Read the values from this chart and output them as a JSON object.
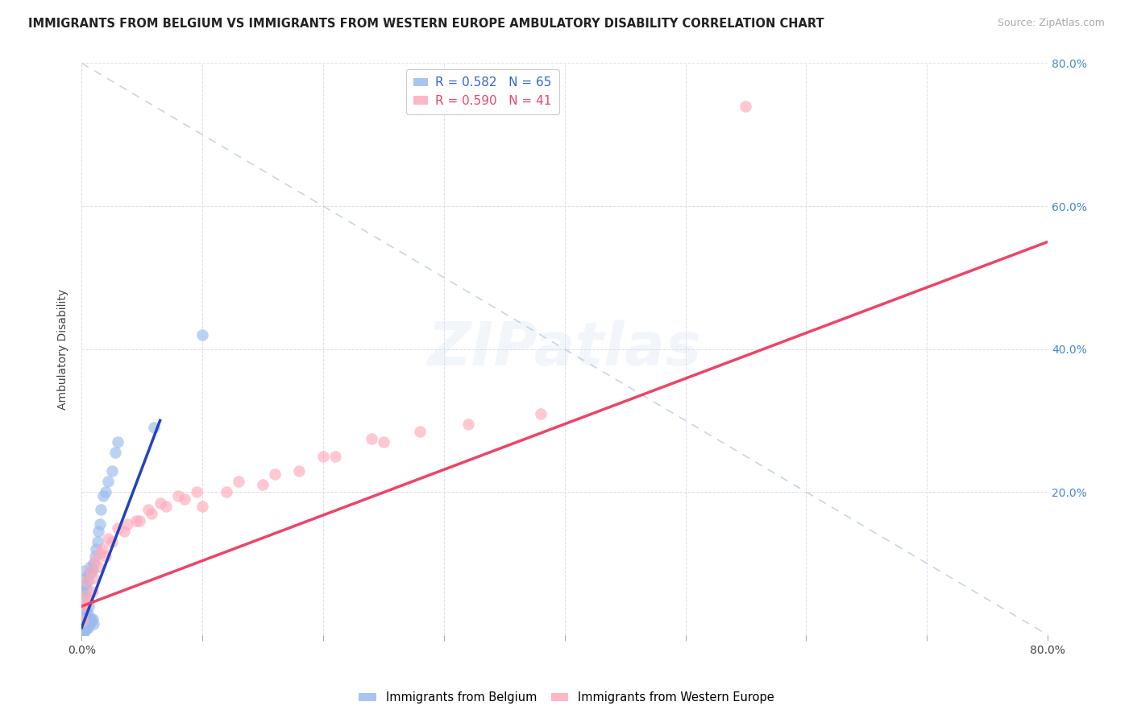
{
  "title": "IMMIGRANTS FROM BELGIUM VS IMMIGRANTS FROM WESTERN EUROPE AMBULATORY DISABILITY CORRELATION CHART",
  "source": "Source: ZipAtlas.com",
  "ylabel": "Ambulatory Disability",
  "R_belgium": 0.582,
  "N_belgium": 65,
  "R_western": 0.59,
  "N_western": 41,
  "xlim": [
    0.0,
    0.8
  ],
  "ylim": [
    0.0,
    0.8
  ],
  "xticks": [
    0.0,
    0.1,
    0.2,
    0.3,
    0.4,
    0.5,
    0.6,
    0.7,
    0.8
  ],
  "yticks": [
    0.0,
    0.2,
    0.4,
    0.6,
    0.8
  ],
  "xtick_labels_sparse": [
    "0.0%",
    "",
    "",
    "",
    "",
    "",
    "",
    "",
    "80.0%"
  ],
  "ytick_labels_right": [
    "",
    "20.0%",
    "40.0%",
    "60.0%",
    "80.0%"
  ],
  "color_belgium": "#99BBEE",
  "color_western": "#FFAABB",
  "trend_blue": "#2244BB",
  "trend_pink": "#EE4466",
  "grid_color": "#DDDDEE",
  "diag_color": "#BBCCDD",
  "belgium_x": [
    0.001,
    0.001,
    0.001,
    0.002,
    0.002,
    0.002,
    0.002,
    0.003,
    0.003,
    0.003,
    0.003,
    0.004,
    0.004,
    0.004,
    0.005,
    0.005,
    0.005,
    0.006,
    0.006,
    0.006,
    0.007,
    0.007,
    0.008,
    0.008,
    0.009,
    0.009,
    0.01,
    0.01,
    0.011,
    0.012,
    0.013,
    0.014,
    0.015,
    0.016,
    0.018,
    0.02,
    0.022,
    0.025,
    0.028,
    0.03,
    0.002,
    0.003,
    0.004,
    0.005,
    0.006,
    0.007,
    0.008,
    0.001,
    0.002,
    0.003,
    0.004,
    0.005,
    0.001,
    0.002,
    0.003,
    0.004,
    0.001,
    0.002,
    0.003,
    0.001,
    0.001,
    0.001,
    0.001,
    0.06,
    0.1
  ],
  "belgium_y": [
    0.02,
    0.035,
    0.06,
    0.015,
    0.04,
    0.07,
    0.09,
    0.01,
    0.025,
    0.055,
    0.08,
    0.015,
    0.035,
    0.065,
    0.01,
    0.03,
    0.075,
    0.015,
    0.04,
    0.085,
    0.02,
    0.095,
    0.018,
    0.088,
    0.022,
    0.092,
    0.015,
    0.1,
    0.11,
    0.12,
    0.13,
    0.145,
    0.155,
    0.175,
    0.195,
    0.2,
    0.215,
    0.23,
    0.255,
    0.27,
    0.005,
    0.008,
    0.01,
    0.012,
    0.015,
    0.018,
    0.022,
    0.003,
    0.006,
    0.009,
    0.012,
    0.016,
    0.004,
    0.007,
    0.011,
    0.014,
    0.002,
    0.005,
    0.008,
    0.003,
    0.004,
    0.006,
    0.002,
    0.29,
    0.42
  ],
  "western_x": [
    0.001,
    0.002,
    0.003,
    0.004,
    0.005,
    0.007,
    0.009,
    0.011,
    0.014,
    0.017,
    0.02,
    0.025,
    0.03,
    0.038,
    0.048,
    0.058,
    0.07,
    0.085,
    0.1,
    0.12,
    0.15,
    0.18,
    0.21,
    0.25,
    0.28,
    0.01,
    0.015,
    0.022,
    0.035,
    0.045,
    0.055,
    0.065,
    0.08,
    0.095,
    0.13,
    0.16,
    0.2,
    0.24,
    0.32,
    0.38,
    0.55
  ],
  "western_y": [
    0.02,
    0.04,
    0.055,
    0.075,
    0.045,
    0.09,
    0.06,
    0.105,
    0.095,
    0.12,
    0.11,
    0.13,
    0.15,
    0.155,
    0.16,
    0.17,
    0.18,
    0.19,
    0.18,
    0.2,
    0.21,
    0.23,
    0.25,
    0.27,
    0.285,
    0.08,
    0.115,
    0.135,
    0.145,
    0.16,
    0.175,
    0.185,
    0.195,
    0.2,
    0.215,
    0.225,
    0.25,
    0.275,
    0.295,
    0.31,
    0.74
  ],
  "blue_trend_x": [
    0.0,
    0.065
  ],
  "blue_trend_y": [
    0.01,
    0.3
  ],
  "pink_trend_x": [
    0.0,
    0.8
  ],
  "pink_trend_y": [
    0.04,
    0.55
  ]
}
